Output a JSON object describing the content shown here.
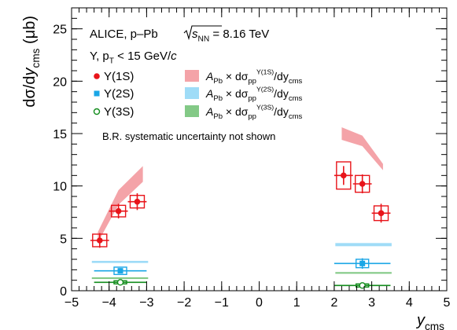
{
  "chart_data": {
    "type": "scatter",
    "experiment": "ALICE, p–Pb",
    "energy_prefix": "s",
    "energy_subscript": "NN",
    "energy_value": " = 8.16 TeV",
    "selection": "Υ, p",
    "selection_sub": "T",
    "selection_cut": " < 15 GeV/",
    "selection_unit": "c",
    "note": "B.R. systematic uncertainty not shown",
    "xlabel": "y",
    "xlabel_sub": "cms",
    "ylabel": "dσ/dy",
    "ylabel_sub": "cms",
    "ylabel_unit": "(μb)",
    "xlim": [
      -5,
      5
    ],
    "ylim": [
      0,
      27
    ],
    "x_ticks": [
      "−5",
      "−4",
      "−3",
      "−2",
      "−1",
      "0",
      "1",
      "2",
      "3",
      "4",
      "5"
    ],
    "x_tick_values": [
      -5,
      -4,
      -3,
      -2,
      -1,
      0,
      1,
      2,
      3,
      4,
      5
    ],
    "y_ticks": [
      "0",
      "5",
      "10",
      "15",
      "20",
      "25"
    ],
    "y_tick_values": [
      0,
      5,
      10,
      15,
      20,
      25
    ],
    "series": [
      {
        "name": "Υ(1S)",
        "marker": "filled-circle",
        "color": "#e8141a",
        "points": [
          {
            "x": -4.25,
            "y": 4.8,
            "xerr": 0.25,
            "stat": 0.7,
            "sys": 0.6
          },
          {
            "x": -3.75,
            "y": 7.6,
            "xerr": 0.25,
            "stat": 0.7,
            "sys": 0.55
          },
          {
            "x": -3.25,
            "y": 8.5,
            "xerr": 0.25,
            "stat": 0.8,
            "sys": 0.6
          },
          {
            "x": 2.25,
            "y": 11.0,
            "xerr": 0.25,
            "stat": 0.9,
            "sys": 1.3
          },
          {
            "x": 2.75,
            "y": 10.2,
            "xerr": 0.25,
            "stat": 0.9,
            "sys": 0.8
          },
          {
            "x": 3.25,
            "y": 7.4,
            "xerr": 0.25,
            "stat": 0.9,
            "sys": 0.7
          }
        ]
      },
      {
        "name": "Υ(2S)",
        "marker": "filled-square",
        "color": "#1aa6e6",
        "points": [
          {
            "x": -3.7,
            "y": 1.9,
            "xerr": 0.7,
            "stat": 0.25,
            "sys": 0.35
          },
          {
            "x": 2.75,
            "y": 2.6,
            "xerr": 0.75,
            "stat": 0.5,
            "sys": 0.4
          }
        ]
      },
      {
        "name": "Υ(3S)",
        "marker": "open-circle",
        "color": "#128c1c",
        "points": [
          {
            "x": -3.7,
            "y": 0.8,
            "xerr": 0.7,
            "stat": 0.15,
            "sys": 0.15
          },
          {
            "x": 2.75,
            "y": 0.5,
            "xerr": 0.75,
            "stat": 0.2,
            "sys": 0.15
          }
        ]
      }
    ],
    "reference_bands": [
      {
        "label_prefix": "A",
        "label_prefix_sub": "Pb",
        "label_mid": " × dσ",
        "label_sub": "pp",
        "label_sup": "Υ(1S)",
        "label_end": "/dy",
        "label_end_sub": "cms",
        "color": "#f4a3a8",
        "kind": "band",
        "segments": [
          {
            "x": [
              -4.3,
              -3.75,
              -3.1
            ],
            "ylow": [
              4.6,
              8.2,
              10.4
            ],
            "yhigh": [
              5.6,
              9.6,
              11.9
            ]
          },
          {
            "x": [
              2.2,
              2.75,
              3.3
            ],
            "ylow": [
              14.4,
              13.8,
              11.5
            ],
            "yhigh": [
              15.6,
              14.8,
              12.1
            ]
          }
        ]
      },
      {
        "label_prefix": "A",
        "label_prefix_sub": "Pb",
        "label_mid": " × dσ",
        "label_sub": "pp",
        "label_sup": "Υ(2S)",
        "label_end": "/dy",
        "label_end_sub": "cms",
        "color": "#9fdcf7",
        "kind": "line",
        "segments": [
          {
            "xrange": [
              -4.46,
              -2.96
            ],
            "y": 2.75,
            "halfwidth": 0.1
          },
          {
            "xrange": [
              2.03,
              3.53
            ],
            "y": 4.4,
            "halfwidth": 0.15
          }
        ]
      },
      {
        "label_prefix": "A",
        "label_prefix_sub": "Pb",
        "label_mid": " × dσ",
        "label_sub": "pp",
        "label_sup": "Υ(3S)",
        "label_end": "/dy",
        "label_end_sub": "cms",
        "color": "#83c986",
        "kind": "line",
        "segments": [
          {
            "xrange": [
              -4.46,
              -2.96
            ],
            "y": 1.2,
            "halfwidth": 0.08
          },
          {
            "xrange": [
              2.03,
              3.53
            ],
            "y": 1.7,
            "halfwidth": 0.08
          }
        ]
      }
    ]
  }
}
